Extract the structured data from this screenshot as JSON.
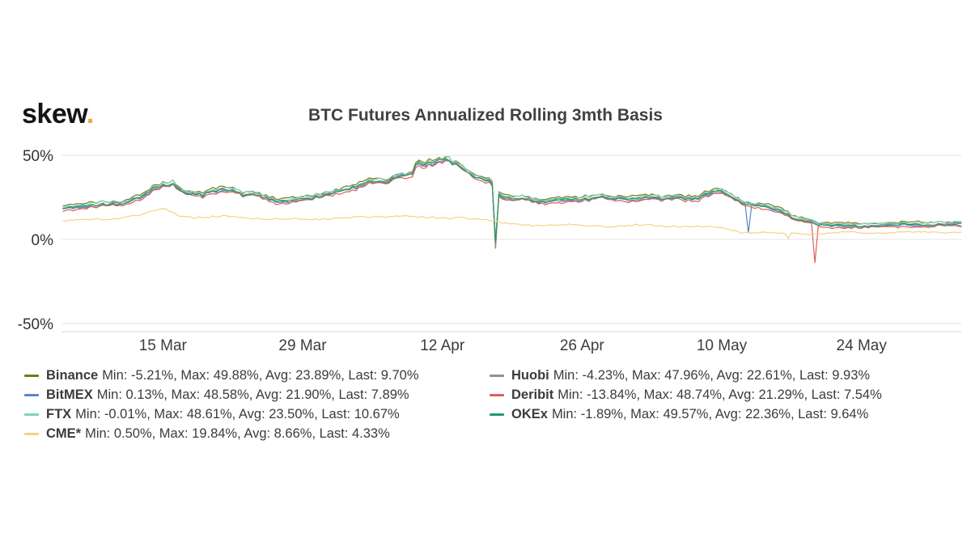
{
  "logo": {
    "text": "skew",
    "dot": ".",
    "accent_color": "#ebA63b",
    "text_color": "#141414"
  },
  "chart_data": {
    "type": "line",
    "title": "BTC Futures Annualized Rolling 3mth Basis",
    "xlabel": "",
    "ylabel": "",
    "ylim": [
      -55,
      52
    ],
    "grid": "horizontal",
    "legend_position": "bottom",
    "x_domain_days": [
      0,
      90
    ],
    "yticks": [
      {
        "value": 50,
        "label": "50%"
      },
      {
        "value": 0,
        "label": "0%"
      },
      {
        "value": -50,
        "label": "-50%"
      }
    ],
    "xticks": [
      {
        "day": 10,
        "label": "15 Mar"
      },
      {
        "day": 24,
        "label": "29 Mar"
      },
      {
        "day": 38,
        "label": "12 Apr"
      },
      {
        "day": 52,
        "label": "26 Apr"
      },
      {
        "day": 66,
        "label": "10 May"
      },
      {
        "day": 80,
        "label": "24 May"
      }
    ],
    "stat_labels": {
      "min": "Min:",
      "max": "Max:",
      "avg": "Avg:",
      "last": "Last:"
    },
    "draw_order": [
      0,
      4,
      1,
      5,
      2,
      6,
      3
    ],
    "base_keypoints": [
      [
        0,
        19
      ],
      [
        2,
        20
      ],
      [
        4,
        21
      ],
      [
        6,
        22
      ],
      [
        8,
        26
      ],
      [
        9,
        30
      ],
      [
        10,
        32.5
      ],
      [
        11,
        33.5
      ],
      [
        12,
        29
      ],
      [
        13,
        27
      ],
      [
        14,
        26.5
      ],
      [
        15,
        28.5
      ],
      [
        16,
        30
      ],
      [
        17,
        29
      ],
      [
        18,
        27
      ],
      [
        19,
        27.5
      ],
      [
        20,
        26
      ],
      [
        21,
        23.5
      ],
      [
        22,
        22.5
      ],
      [
        23,
        23
      ],
      [
        24,
        24
      ],
      [
        26,
        26.5
      ],
      [
        28,
        29.5
      ],
      [
        30,
        32.5
      ],
      [
        31,
        34.5
      ],
      [
        32,
        34
      ],
      [
        33,
        36
      ],
      [
        34,
        38
      ],
      [
        35,
        40
      ],
      [
        35.5,
        46
      ],
      [
        36,
        44.5
      ],
      [
        37,
        45.5
      ],
      [
        38,
        47.5
      ],
      [
        38.5,
        48.5
      ],
      [
        39,
        46
      ],
      [
        40,
        43
      ],
      [
        41,
        39
      ],
      [
        42,
        36
      ],
      [
        43,
        34
      ],
      [
        43.8,
        26
      ],
      [
        45,
        24
      ],
      [
        46,
        25
      ],
      [
        47,
        23
      ],
      [
        48,
        22.5
      ],
      [
        50,
        24
      ],
      [
        52,
        24
      ],
      [
        54,
        25.5
      ],
      [
        56,
        24
      ],
      [
        58,
        25
      ],
      [
        60,
        24.5
      ],
      [
        62,
        25
      ],
      [
        63,
        24
      ],
      [
        64,
        25.5
      ],
      [
        65,
        28
      ],
      [
        66,
        28.5
      ],
      [
        67,
        26
      ],
      [
        68,
        22
      ],
      [
        69,
        21
      ],
      [
        70,
        20
      ],
      [
        71,
        18.5
      ],
      [
        72,
        17
      ],
      [
        73,
        13.5
      ],
      [
        74,
        12
      ],
      [
        75,
        10.5
      ],
      [
        76,
        9
      ],
      [
        77,
        8
      ],
      [
        78,
        8.5
      ],
      [
        80,
        8
      ],
      [
        82,
        8.5
      ],
      [
        84,
        9
      ],
      [
        86,
        8.8
      ],
      [
        88,
        9
      ],
      [
        90,
        9.3
      ]
    ],
    "series": [
      {
        "name": "Binance",
        "color": "#7d741f",
        "offset": 1.3,
        "noise": 1,
        "use_shared": true,
        "spikes": [
          [
            43.4,
            -5.21
          ]
        ],
        "min": -5.21,
        "max": 49.88,
        "avg": 23.89,
        "last": 9.7
      },
      {
        "name": "BitMEX",
        "color": "#5a85c7",
        "offset": -0.7,
        "noise": 1,
        "use_shared": true,
        "spikes": [
          [
            43.45,
            0.13
          ],
          [
            68.7,
            4.0
          ]
        ],
        "min": 0.13,
        "max": 48.58,
        "avg": 21.9,
        "last": 7.89
      },
      {
        "name": "FTX",
        "color": "#7fd3b5",
        "offset": 0.9,
        "noise": 1,
        "use_shared": true,
        "spikes": [
          [
            43.4,
            -0.01
          ]
        ],
        "min": -0.01,
        "max": 48.61,
        "avg": 23.5,
        "last": 10.67
      },
      {
        "name": "CME*",
        "color": "#f1d488",
        "offset": 0,
        "noise": 0.9,
        "use_shared": false,
        "keypoints": [
          [
            0,
            11
          ],
          [
            3,
            12
          ],
          [
            6,
            13
          ],
          [
            8,
            14.5
          ],
          [
            9,
            17
          ],
          [
            10,
            18.5
          ],
          [
            11,
            16
          ],
          [
            12,
            14
          ],
          [
            14,
            13
          ],
          [
            16,
            13.5
          ],
          [
            18,
            13
          ],
          [
            20,
            12.5
          ],
          [
            22,
            12
          ],
          [
            24,
            12
          ],
          [
            26,
            12.5
          ],
          [
            28,
            13
          ],
          [
            30,
            13
          ],
          [
            32,
            13.5
          ],
          [
            34,
            14
          ],
          [
            36,
            13
          ],
          [
            38,
            12.5
          ],
          [
            40,
            13.5
          ],
          [
            41,
            12.5
          ],
          [
            42,
            12
          ],
          [
            43,
            11
          ],
          [
            44,
            9.5
          ],
          [
            46,
            9
          ],
          [
            48,
            8.5
          ],
          [
            52,
            8.5
          ],
          [
            54,
            8
          ],
          [
            56,
            8
          ],
          [
            58,
            8.5
          ],
          [
            60,
            8
          ],
          [
            62,
            8
          ],
          [
            64,
            7.5
          ],
          [
            66,
            7
          ],
          [
            67,
            5.5
          ],
          [
            68,
            4.5
          ],
          [
            70,
            4
          ],
          [
            72,
            3.5
          ],
          [
            74,
            3.5
          ],
          [
            76,
            3.5
          ],
          [
            78,
            4
          ],
          [
            80,
            4
          ],
          [
            83,
            4.2
          ],
          [
            86,
            4.3
          ],
          [
            90,
            4.33
          ]
        ],
        "spikes": [
          [
            72.8,
            0.5
          ]
        ],
        "min": 0.5,
        "max": 19.84,
        "avg": 8.66,
        "last": 4.33
      },
      {
        "name": "Huobi",
        "color": "#8f8f8f",
        "offset": 0,
        "noise": 1,
        "use_shared": true,
        "spikes": [
          [
            43.4,
            -4.23
          ]
        ],
        "min": -4.23,
        "max": 47.96,
        "avg": 22.61,
        "last": 9.93
      },
      {
        "name": "Deribit",
        "color": "#e05d5d",
        "offset": -1.3,
        "noise": 1,
        "use_shared": true,
        "spikes": [
          [
            43.35,
            -3.0
          ],
          [
            75.2,
            -13.84
          ]
        ],
        "min": -13.84,
        "max": 48.74,
        "avg": 21.29,
        "last": 7.54
      },
      {
        "name": "OKEx",
        "color": "#219c62",
        "offset": -0.2,
        "noise": 1,
        "use_shared": true,
        "spikes": [
          [
            43.4,
            -1.89
          ]
        ],
        "min": -1.89,
        "max": 49.57,
        "avg": 22.36,
        "last": 9.64
      }
    ]
  }
}
